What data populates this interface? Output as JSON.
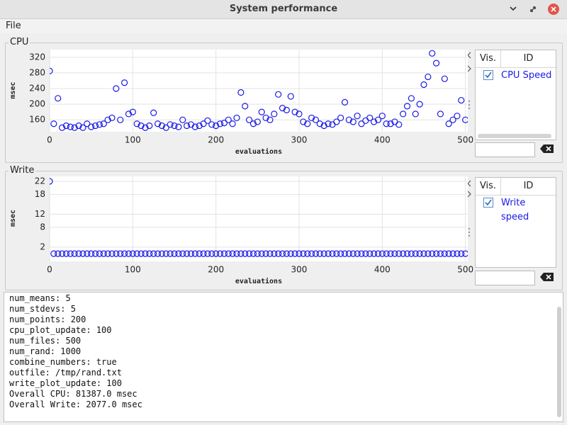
{
  "window": {
    "title": "System performance"
  },
  "menu": [
    "File"
  ],
  "chart_data": [
    {
      "type": "scatter",
      "title": "CPU",
      "xlabel": "evaluations",
      "ylabel": "msec",
      "xlim": [
        0,
        502
      ],
      "ylim": [
        135,
        336
      ],
      "xticks": [
        0,
        100,
        200,
        300,
        400,
        500
      ],
      "yticks": [
        160,
        200,
        240,
        280,
        320
      ],
      "grid": true,
      "legend_columns": [
        "Vis.",
        "ID"
      ],
      "series": [
        {
          "name": "CPU Speed",
          "color": "#1a1ae6",
          "x": [
            0,
            5,
            10,
            15,
            20,
            25,
            30,
            35,
            40,
            45,
            50,
            55,
            60,
            65,
            70,
            75,
            80,
            85,
            90,
            95,
            100,
            105,
            110,
            115,
            120,
            125,
            130,
            135,
            140,
            145,
            150,
            155,
            160,
            165,
            170,
            175,
            180,
            185,
            190,
            195,
            200,
            205,
            210,
            215,
            220,
            225,
            230,
            235,
            240,
            245,
            250,
            255,
            260,
            265,
            270,
            275,
            280,
            285,
            290,
            295,
            300,
            305,
            310,
            315,
            320,
            325,
            330,
            335,
            340,
            345,
            350,
            355,
            360,
            365,
            370,
            375,
            380,
            385,
            390,
            395,
            400,
            405,
            410,
            415,
            420,
            425,
            430,
            435,
            440,
            445,
            450,
            455,
            460,
            465,
            470,
            475,
            480,
            485,
            490,
            495,
            500
          ],
          "values": [
            285,
            150,
            215,
            140,
            145,
            142,
            140,
            145,
            140,
            150,
            142,
            145,
            148,
            150,
            160,
            165,
            240,
            160,
            255,
            175,
            180,
            150,
            145,
            140,
            145,
            178,
            150,
            145,
            140,
            148,
            145,
            142,
            160,
            145,
            148,
            142,
            145,
            150,
            158,
            148,
            145,
            150,
            152,
            160,
            150,
            165,
            230,
            195,
            160,
            150,
            155,
            180,
            165,
            160,
            175,
            225,
            190,
            185,
            220,
            180,
            175,
            155,
            150,
            165,
            160,
            150,
            145,
            150,
            148,
            155,
            165,
            205,
            160,
            155,
            170,
            150,
            158,
            165,
            155,
            160,
            170,
            150,
            150,
            155,
            148,
            175,
            195,
            215,
            175,
            200,
            250,
            270,
            330,
            305,
            175,
            265,
            150,
            160,
            170,
            210,
            160
          ]
        }
      ]
    },
    {
      "type": "scatter",
      "title": "Write",
      "xlabel": "evaluations",
      "ylabel": "msec",
      "xlim": [
        0,
        502
      ],
      "ylim": [
        -1.7,
        23.3
      ],
      "xticks": [
        0,
        100,
        200,
        300,
        400,
        500
      ],
      "yticks": [
        2,
        8,
        12,
        18,
        22
      ],
      "grid": true,
      "legend_columns": [
        "Vis.",
        "ID"
      ],
      "series": [
        {
          "name": "Write speed",
          "color": "#1a1ae6",
          "x": [
            0,
            5,
            10,
            15,
            20,
            25,
            30,
            35,
            40,
            45,
            50,
            55,
            60,
            65,
            70,
            75,
            80,
            85,
            90,
            95,
            100,
            105,
            110,
            115,
            120,
            125,
            130,
            135,
            140,
            145,
            150,
            155,
            160,
            165,
            170,
            175,
            180,
            185,
            190,
            195,
            200,
            205,
            210,
            215,
            220,
            225,
            230,
            235,
            240,
            245,
            250,
            255,
            260,
            265,
            270,
            275,
            280,
            285,
            290,
            295,
            300,
            305,
            310,
            315,
            320,
            325,
            330,
            335,
            340,
            345,
            350,
            355,
            360,
            365,
            370,
            375,
            380,
            385,
            390,
            395,
            400,
            405,
            410,
            415,
            420,
            425,
            430,
            435,
            440,
            445,
            450,
            455,
            460,
            465,
            470,
            475,
            480,
            485,
            490,
            495,
            500
          ],
          "values": [
            22,
            0,
            0,
            0,
            0,
            0,
            0,
            0,
            0,
            0,
            0,
            0,
            0,
            0,
            0,
            0,
            0,
            0,
            0,
            0,
            0,
            0,
            0,
            0,
            0,
            0,
            0,
            0,
            0,
            0,
            0,
            0,
            0,
            0,
            0,
            0,
            0,
            0,
            0,
            0,
            0,
            0,
            0,
            0,
            0,
            0,
            0,
            0,
            0,
            0,
            0,
            0,
            0,
            0,
            0,
            0,
            0,
            0,
            0,
            0,
            0,
            0,
            0,
            0,
            0,
            0,
            0,
            0,
            0,
            0,
            0,
            0,
            0,
            0,
            0,
            0,
            0,
            0,
            0,
            0,
            0,
            0,
            0,
            0,
            0,
            0,
            0,
            0,
            0,
            0,
            0,
            0,
            0,
            0,
            0,
            0,
            0,
            0,
            0,
            0,
            0
          ]
        }
      ]
    }
  ],
  "console": {
    "lines": [
      "num_means: 5",
      "num_stdevs: 5",
      "num_points: 200",
      "cpu_plot_update: 100",
      "num_files: 500",
      "num_rand: 1000",
      "combine_numbers: true",
      "outfile: /tmp/rand.txt",
      "write_plot_update: 100",
      "Overall CPU: 81387.0 msec",
      "Overall Write: 2077.0 msec"
    ]
  }
}
